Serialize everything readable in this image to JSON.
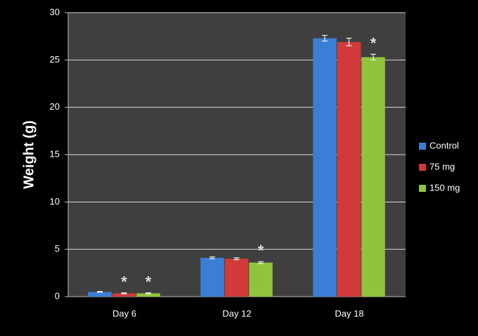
{
  "chart_data": {
    "type": "bar",
    "y_label": "Weight (g)",
    "categories": [
      "Day 6",
      "Day 12",
      "Day 18"
    ],
    "series": [
      {
        "name": "Control",
        "color": "#3a7fd5",
        "values": [
          0.5,
          4.1,
          27.3
        ],
        "errors": [
          0.05,
          0.1,
          0.3
        ],
        "annotations": [
          null,
          null,
          null
        ]
      },
      {
        "name": "75 mg",
        "color": "#d23a3a",
        "values": [
          0.35,
          4.0,
          26.9
        ],
        "errors": [
          0.05,
          0.1,
          0.4
        ],
        "annotations": [
          "*",
          null,
          null
        ]
      },
      {
        "name": "150 mg",
        "color": "#8fc43c",
        "values": [
          0.35,
          3.6,
          25.3
        ],
        "errors": [
          0.05,
          0.1,
          0.3
        ],
        "annotations": [
          "*",
          "*",
          "*"
        ]
      }
    ],
    "ylim": [
      0,
      30
    ],
    "yticks": [
      0,
      5,
      10,
      15,
      20,
      25,
      30
    ],
    "grid": true
  }
}
